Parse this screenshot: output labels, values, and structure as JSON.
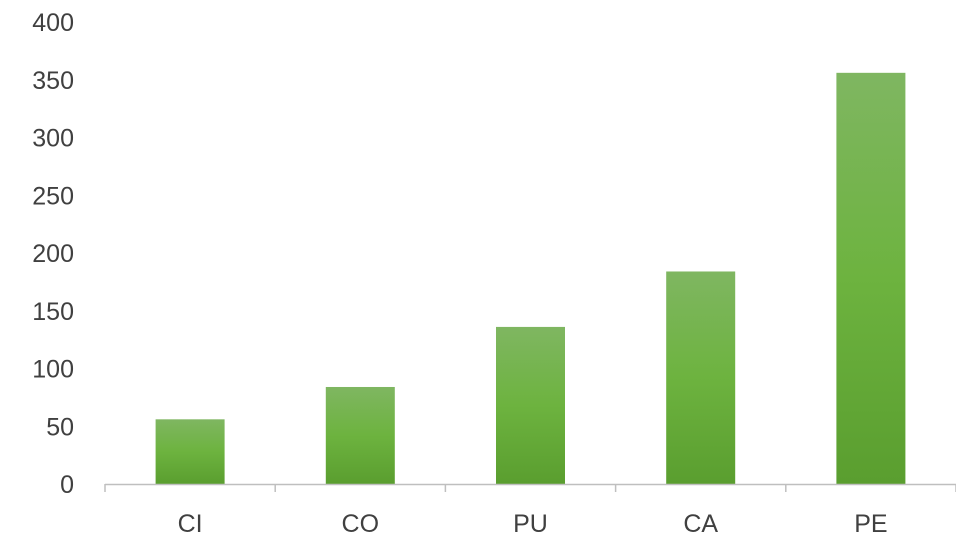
{
  "chart_data": {
    "type": "bar",
    "title": "",
    "xlabel": "",
    "ylabel": "",
    "categories": [
      "CI",
      "CO",
      "PU",
      "CA",
      "PE"
    ],
    "values": [
      56,
      84,
      136,
      184,
      356
    ],
    "ylim": [
      0,
      400
    ],
    "yticks": [
      "0",
      "50",
      "100",
      "150",
      "200",
      "250",
      "300",
      "350",
      "400"
    ],
    "grid": false,
    "legend": "none",
    "colors": {
      "bar_top": "#7fb661",
      "bar_mid": "#6db33f",
      "bar_bottom": "#5a9e2f",
      "axis": "#bfbfbf",
      "text": "#404040"
    }
  }
}
